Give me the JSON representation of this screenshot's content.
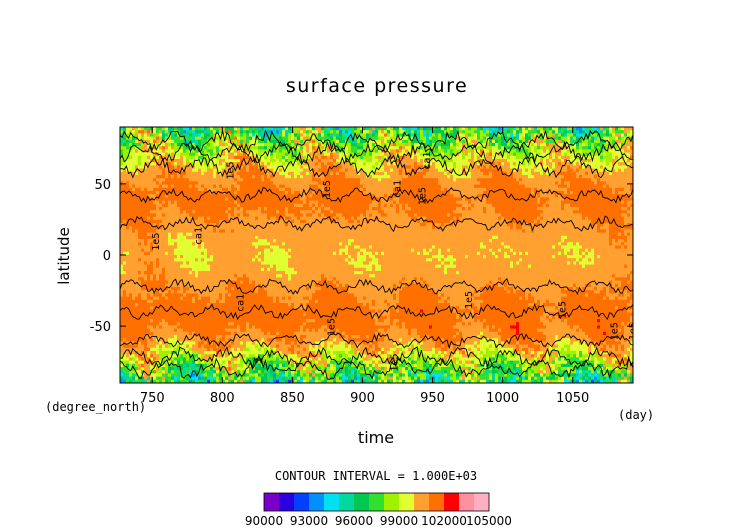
{
  "chart_data": {
    "type": "heatmap",
    "title": "surface pressure",
    "xlabel": "time",
    "ylabel": "latitude",
    "x_units": "(day)",
    "y_units": "(degree_north)",
    "xlim": [
      727,
      1093
    ],
    "ylim": [
      -90,
      90
    ],
    "x_ticks": [
      750,
      800,
      850,
      900,
      950,
      1000,
      1050
    ],
    "y_ticks": [
      -50,
      0,
      50
    ],
    "contour_interval_text": "CONTOUR INTERVAL = 1.000E+03",
    "contour_labels": [
      "1e5",
      "ca1",
      "1e5",
      "1e5",
      "ca1",
      "ca1",
      "1e5",
      "ca1",
      "1e5",
      "1e5",
      "1e5",
      "1e5",
      "1e5",
      "1e5"
    ],
    "colorbar": {
      "levels": [
        90000,
        91000,
        92000,
        93000,
        94000,
        95000,
        96000,
        97000,
        98000,
        99000,
        100000,
        101000,
        102000,
        103000,
        104000,
        105000
      ],
      "tick_labels": [
        "90000",
        "93000",
        "96000",
        "99000",
        "102000",
        "105000"
      ],
      "colors": [
        "#7a00c8",
        "#2a00e0",
        "#0040ff",
        "#0090ff",
        "#00e0f0",
        "#00d8a0",
        "#00c850",
        "#30e030",
        "#a0f000",
        "#e0ff30",
        "#ffa030",
        "#ff7000",
        "#ff0000",
        "#ff90a0",
        "#ffb0c0"
      ]
    },
    "zonal_profile": {
      "latitudes": [
        -90,
        -80,
        -70,
        -60,
        -50,
        -40,
        -30,
        -20,
        -10,
        0,
        10,
        20,
        30,
        40,
        50,
        60,
        70,
        80,
        90
      ],
      "values": [
        96500,
        98000,
        99500,
        100700,
        101300,
        101400,
        101100,
        100700,
        100300,
        100100,
        100300,
        100700,
        101100,
        101300,
        101000,
        100400,
        99400,
        98200,
        97000
      ]
    }
  }
}
